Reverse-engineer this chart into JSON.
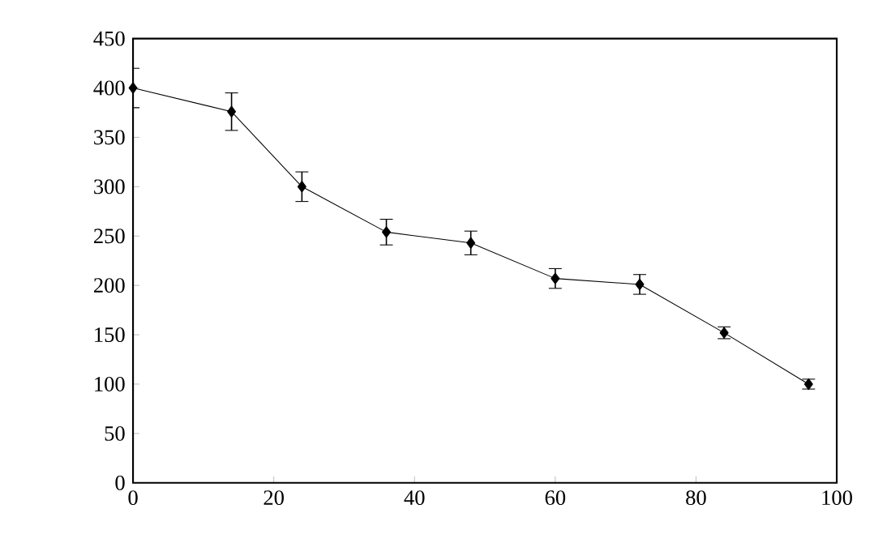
{
  "chart_data": {
    "type": "line",
    "x": [
      0,
      14,
      24,
      36,
      48,
      60,
      72,
      84,
      96
    ],
    "values": [
      400,
      376,
      300,
      254,
      243,
      207,
      201,
      152,
      100
    ],
    "errors": [
      20,
      19,
      15,
      13,
      12,
      10,
      10,
      6,
      5
    ],
    "color": "#000000",
    "marker": "diamond",
    "line_style": "solid",
    "xlim": [
      0,
      100
    ],
    "xticks": [
      0,
      20,
      40,
      60,
      80,
      100
    ],
    "ylim": [
      0,
      450
    ],
    "yticks": [
      0,
      50,
      100,
      150,
      200,
      250,
      300,
      350,
      400,
      450
    ]
  }
}
